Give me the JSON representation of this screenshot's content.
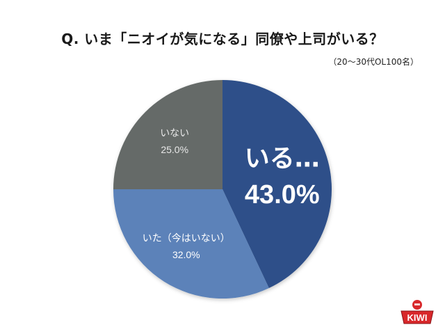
{
  "title": "Q. いま「ニオイが気になる」同僚や上司がいる？",
  "subtitle": "（20〜30代OL100名）",
  "logo_text": "KIWI",
  "chart_data": {
    "type": "pie",
    "title": "Q. いま「ニオイが気になる」同僚や上司がいる？",
    "subtitle": "（20〜30代OL100名）",
    "start_angle_deg": 0,
    "direction": "clockwise",
    "slices": [
      {
        "label": "いる…",
        "value": 43.0,
        "display": "43.0%",
        "color": "#2d5089",
        "text_color": "#ffffff",
        "emphasis": true
      },
      {
        "label": "いた（今はいない）",
        "value": 32.0,
        "display": "32.0%",
        "color": "#5b82b9",
        "text_color": "#ffffff",
        "emphasis": false
      },
      {
        "label": "いない",
        "value": 25.0,
        "display": "25.0%",
        "color": "#656b68",
        "text_color": "#e8e8e8",
        "emphasis": false
      }
    ]
  }
}
